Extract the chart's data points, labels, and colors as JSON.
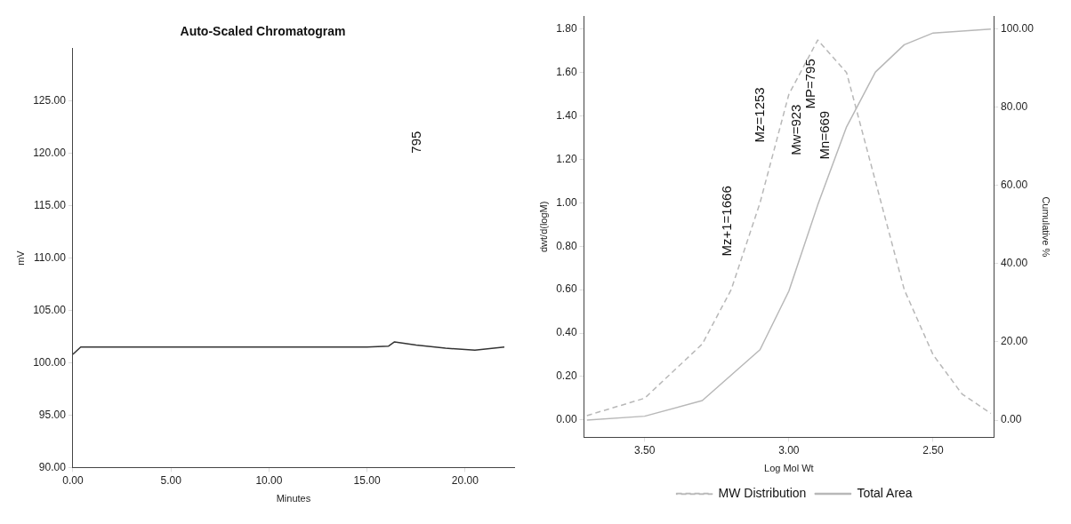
{
  "chart_data": [
    {
      "type": "line",
      "title": "Auto-Scaled Chromatogram",
      "xlabel": "Minutes",
      "ylabel": "mV",
      "x": [
        0,
        0.4,
        5,
        10,
        15,
        16.1,
        16.4,
        17.5,
        19,
        20.5,
        22
      ],
      "series": [
        {
          "color": "#333333",
          "values": [
            100.8,
            101.5,
            101.5,
            101.5,
            101.5,
            101.6,
            102.0,
            101.7,
            101.4,
            101.2,
            101.5
          ]
        }
      ],
      "xlim": [
        0,
        22.5
      ],
      "xticks": [
        {
          "value": 0,
          "label": "0.00"
        },
        {
          "value": 5,
          "label": "5.00"
        },
        {
          "value": 10,
          "label": "10.00"
        },
        {
          "value": 15,
          "label": "15.00"
        },
        {
          "value": 20,
          "label": "20.00"
        }
      ],
      "ylim": [
        90,
        130
      ],
      "yticks": [
        {
          "value": 90,
          "label": "90.00"
        },
        {
          "value": 95,
          "label": "95.00"
        },
        {
          "value": 100,
          "label": "100.00"
        },
        {
          "value": 105,
          "label": "105.00"
        },
        {
          "value": 110,
          "label": "110.00"
        },
        {
          "value": 115,
          "label": "115.00"
        },
        {
          "value": 120,
          "label": "120.00"
        },
        {
          "value": 125,
          "label": "125.00"
        }
      ],
      "grid": false,
      "legend": false,
      "annotations": [
        "795"
      ]
    },
    {
      "type": "line",
      "xlabel": "Log Mol Wt",
      "ylabel": "dwt/d(logM)",
      "y2label": "Cumulative %",
      "series": [
        {
          "name": "MW Distribution",
          "color": "#b8b8b8",
          "line_style": "dashed",
          "x": [
            3.7,
            3.5,
            3.3,
            3.2,
            3.1,
            3.0,
            2.9,
            2.8,
            2.7,
            2.6,
            2.5,
            2.4,
            2.3
          ],
          "values": [
            0.02,
            0.1,
            0.35,
            0.6,
            1.0,
            1.5,
            1.75,
            1.6,
            1.1,
            0.6,
            0.3,
            0.12,
            0.03
          ]
        },
        {
          "name": "Total Area",
          "color": "#b8b8b8",
          "axis": "y2",
          "x": [
            3.7,
            3.5,
            3.3,
            3.1,
            3.0,
            2.9,
            2.8,
            2.7,
            2.6,
            2.5,
            2.3
          ],
          "values": [
            0,
            1,
            5,
            18,
            33,
            55,
            75,
            89,
            96,
            99,
            100
          ]
        }
      ],
      "xlim": [
        3.71,
        2.29
      ],
      "xticks": [
        {
          "value": 3.5,
          "label": "3.50"
        },
        {
          "value": 3,
          "label": "3.00"
        },
        {
          "value": 2.5,
          "label": "2.50"
        }
      ],
      "ylim": [
        -0.08,
        1.86
      ],
      "yticks": [
        {
          "value": 0,
          "label": "0.00"
        },
        {
          "value": 0.2,
          "label": "0.20"
        },
        {
          "value": 0.4,
          "label": "0.40"
        },
        {
          "value": 0.6,
          "label": "0.60"
        },
        {
          "value": 0.8,
          "label": "0.80"
        },
        {
          "value": 1,
          "label": "1.00"
        },
        {
          "value": 1.2,
          "label": "1.20"
        },
        {
          "value": 1.4,
          "label": "1.40"
        },
        {
          "value": 1.6,
          "label": "1.60"
        },
        {
          "value": 1.8,
          "label": "1.80"
        }
      ],
      "y2lim": [
        -4.4,
        103.3
      ],
      "y2ticks": [
        {
          "value": 0,
          "label": "0.00"
        },
        {
          "value": 20,
          "label": "20.00"
        },
        {
          "value": 40,
          "label": "40.00"
        },
        {
          "value": 60,
          "label": "60.00"
        },
        {
          "value": 80,
          "label": "80.00"
        },
        {
          "value": 100,
          "label": "100.00"
        }
      ],
      "grid": false,
      "legend": "bottom",
      "annotations": [
        "Mz+1=1666",
        "Mz=1253",
        "Mw=923",
        "MP=795",
        "Mn=669"
      ]
    }
  ]
}
